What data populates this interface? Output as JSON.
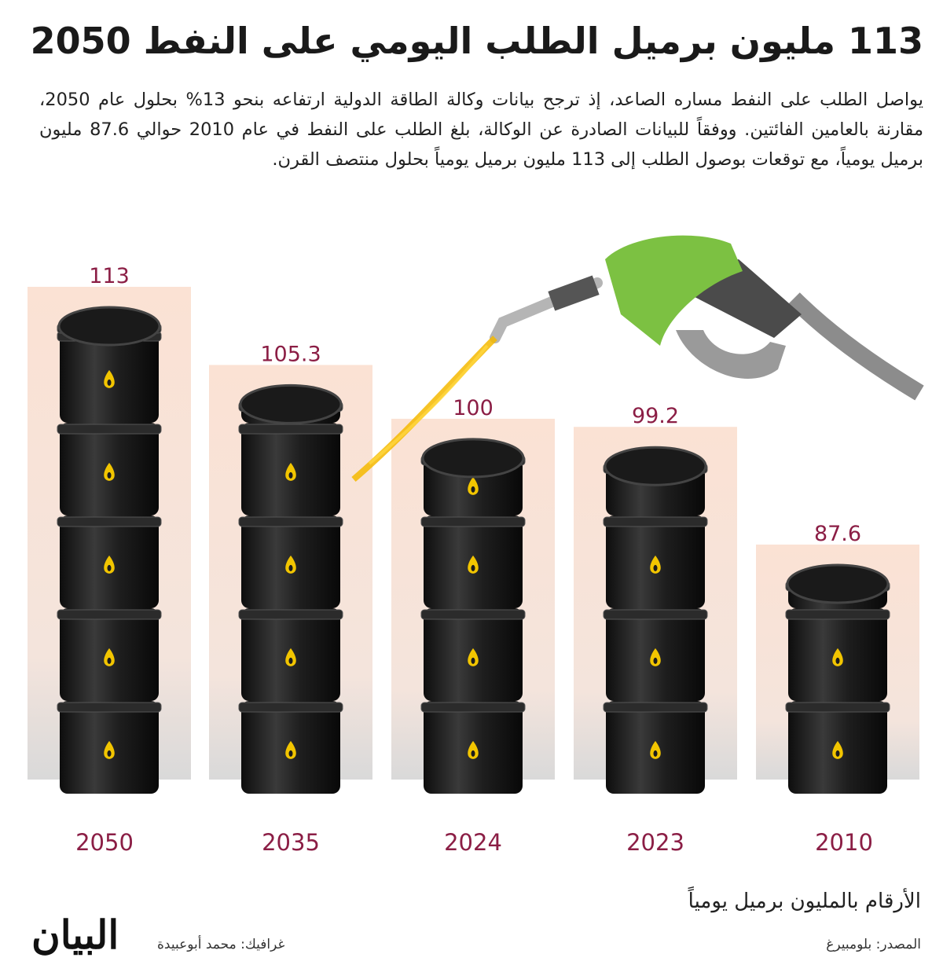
{
  "title": "113 مليون برميل الطلب اليومي على النفط 2050",
  "lead": "يواصل الطلب على النفط مساره الصاعد، إذ ترجح بيانات وكالة الطاقة الدولية ارتفاعه بنحو 13% بحلول عام 2050، مقارنة بالعامين الفائتين. ووفقاً للبيانات الصادرة عن الوكالة، بلغ الطلب على النفط في عام 2010 حوالي 87.6 مليون برميل يومياً، مع توقعات بوصول الطلب إلى 113 مليون برميل يومياً بحلول منتصف القرن.",
  "chart_data": {
    "type": "bar",
    "categories": [
      "2050",
      "2035",
      "2024",
      "2023",
      "2010"
    ],
    "values": [
      113,
      105.3,
      100,
      99.2,
      87.6
    ],
    "value_labels": [
      "113",
      "105.3",
      "100",
      "99.2",
      "87.6"
    ],
    "title": "",
    "xlabel": "",
    "ylabel": "",
    "mark_style": "stacked oil barrels",
    "colors": {
      "label": "#8b1e45",
      "panel": "#fbe2d4",
      "barrel": "#1c1c1c",
      "drop": "#f2c500",
      "nozzle": "#7cc142"
    }
  },
  "footer": {
    "unit_note": "الأرقام بالمليون برميل يومياً",
    "source": "المصدر: بلومبيرغ",
    "credit": "غرافيك: محمد أبوعبيدة",
    "logo": "البيان"
  }
}
